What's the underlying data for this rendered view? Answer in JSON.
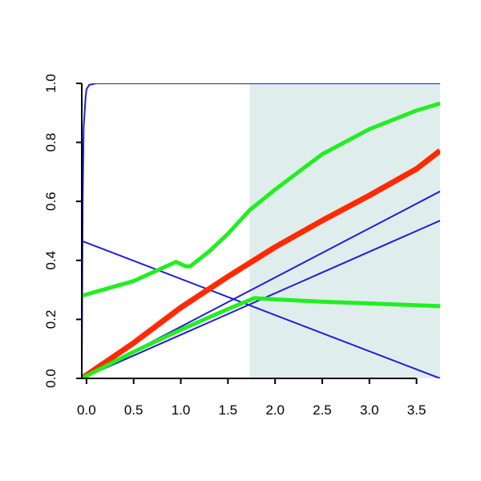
{
  "chart_data": {
    "type": "line",
    "title": "",
    "xlabel": "",
    "ylabel": "",
    "xlim": [
      -0.05,
      3.75
    ],
    "ylim": [
      0.0,
      1.0
    ],
    "x_ticks": [
      {
        "value": 0.0,
        "label": "0.0"
      },
      {
        "value": 0.5,
        "label": "0.5"
      },
      {
        "value": 1.0,
        "label": "1.0"
      },
      {
        "value": 1.5,
        "label": "1.5"
      },
      {
        "value": 2.0,
        "label": "2.0"
      },
      {
        "value": 2.5,
        "label": "2.5"
      },
      {
        "value": 3.0,
        "label": "3.0"
      },
      {
        "value": 3.5,
        "label": "3.5"
      }
    ],
    "y_ticks": [
      {
        "value": 0.0,
        "label": "0.0"
      },
      {
        "value": 0.2,
        "label": "0.2"
      },
      {
        "value": 0.4,
        "label": "0.4"
      },
      {
        "value": 0.6,
        "label": "0.6"
      },
      {
        "value": 0.8,
        "label": "0.8"
      },
      {
        "value": 1.0,
        "label": "1.0"
      }
    ],
    "grid": false,
    "legend": "none",
    "shaded_region": {
      "x": [
        1.73,
        3.75
      ],
      "y": [
        0.0,
        1.0
      ],
      "color": "#e0eded"
    },
    "series": [
      {
        "color": "#1f1fd6",
        "width": 2,
        "points": [
          [
            -0.05,
            0.0
          ],
          [
            -0.04,
            0.6
          ],
          [
            -0.03,
            0.85
          ],
          [
            -0.01,
            0.95
          ],
          [
            0.0,
            0.98
          ],
          [
            0.03,
            0.995
          ],
          [
            0.1,
            1.0
          ],
          [
            3.75,
            1.0
          ]
        ]
      },
      {
        "color": "#1f1fd6",
        "width": 2,
        "points": [
          [
            -0.05,
            0.466
          ],
          [
            3.75,
            0.0
          ]
        ]
      },
      {
        "color": "#1f1fd6",
        "width": 2,
        "points": [
          [
            -0.05,
            0.0
          ],
          [
            3.75,
            0.634
          ]
        ]
      },
      {
        "color": "#1f1fd6",
        "width": 2,
        "points": [
          [
            -0.05,
            0.0
          ],
          [
            3.75,
            0.535
          ]
        ]
      },
      {
        "color": "#ff2a00",
        "width": 7,
        "points": [
          [
            -0.05,
            0.0
          ],
          [
            0.5,
            0.12
          ],
          [
            1.0,
            0.24
          ],
          [
            1.5,
            0.345
          ],
          [
            2.0,
            0.445
          ],
          [
            2.5,
            0.535
          ],
          [
            3.0,
            0.62
          ],
          [
            3.5,
            0.71
          ],
          [
            3.75,
            0.772
          ]
        ]
      },
      {
        "color": "#22ee22",
        "width": 5,
        "points": [
          [
            -0.05,
            0.28
          ],
          [
            0.5,
            0.33
          ],
          [
            0.95,
            0.395
          ],
          [
            1.05,
            0.38
          ],
          [
            1.1,
            0.38
          ],
          [
            1.3,
            0.43
          ],
          [
            1.5,
            0.49
          ],
          [
            1.73,
            0.57
          ],
          [
            2.0,
            0.64
          ],
          [
            2.5,
            0.76
          ],
          [
            3.0,
            0.845
          ],
          [
            3.5,
            0.908
          ],
          [
            3.75,
            0.932
          ]
        ]
      },
      {
        "color": "#22ee22",
        "width": 5,
        "points": [
          [
            -0.05,
            0.0
          ],
          [
            0.5,
            0.09
          ],
          [
            1.0,
            0.165
          ],
          [
            1.5,
            0.235
          ],
          [
            1.78,
            0.272
          ],
          [
            2.0,
            0.268
          ],
          [
            2.5,
            0.26
          ],
          [
            3.0,
            0.254
          ],
          [
            3.5,
            0.248
          ],
          [
            3.75,
            0.245
          ]
        ]
      }
    ]
  }
}
